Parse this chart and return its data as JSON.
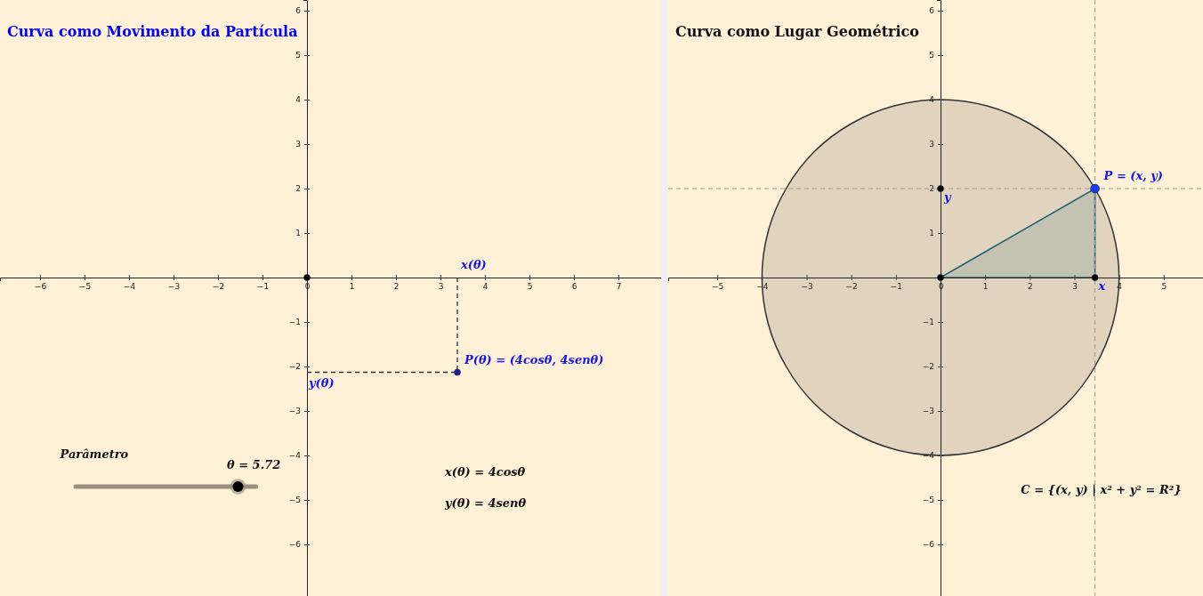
{
  "chart_data": [
    {
      "type": "scatter",
      "title": "Curva como Movimento da Partícula",
      "xlim": [
        -6.9,
        7.96
      ],
      "ylim": [
        -7.16,
        6.24
      ],
      "xticks": [
        -6,
        -5,
        -4,
        -3,
        -2,
        -1,
        0,
        1,
        2,
        3,
        4,
        5,
        6,
        7
      ],
      "yticks": [
        -6,
        -5,
        -4,
        -3,
        -2,
        -1,
        1,
        2,
        3,
        4,
        5,
        6
      ],
      "line_style": "dashed",
      "series": [
        {
          "type": "line",
          "color": "#333333",
          "x": [
            3.38,
            3.38
          ],
          "values": [
            0,
            -2.13
          ]
        },
        {
          "type": "line",
          "color": "#333333",
          "x": [
            0,
            3.38
          ],
          "values": [
            -2.13,
            -2.13
          ]
        },
        {
          "marker": "circle",
          "color": "#1a1aaa",
          "x": [
            3.38
          ],
          "values": [
            -2.13
          ]
        },
        {
          "marker": "circle",
          "color": "#000000",
          "x": [
            0
          ],
          "values": [
            0
          ]
        }
      ],
      "annotations": [
        {
          "text": "x(θ)",
          "x": 3.38,
          "y": 0
        },
        {
          "text": "P(θ) = (4cosθ, 4senθ)",
          "x": 3.38,
          "y": -2.13
        },
        {
          "text": "y(θ)",
          "x": 0,
          "y": -2.13
        },
        "x(θ) = 4cosθ",
        "y(θ) = 4senθ",
        "Parâmetro",
        "θ = 5.72"
      ]
    },
    {
      "type": "scatter",
      "title": "Curva como Lugar Geométrico",
      "xlim": [
        -6.1,
        5.88
      ],
      "ylim": [
        -7.16,
        6.24
      ],
      "xticks": [
        -5,
        -4,
        -3,
        -2,
        -1,
        0,
        1,
        2,
        3,
        4,
        5
      ],
      "yticks": [
        -6,
        -5,
        -4,
        -3,
        -2,
        -1,
        1,
        2,
        3,
        4,
        5,
        6
      ],
      "series": [
        {
          "type": "area",
          "color": "#333333",
          "x": [
            4,
            3.86,
            3.46,
            2.83,
            2,
            1.04,
            0,
            -1.04,
            -2,
            -2.83,
            -3.46,
            -3.86,
            -4,
            -3.86,
            -3.46,
            -2.83,
            -2,
            -1.04,
            0,
            1.04,
            2,
            2.83,
            3.46,
            3.86
          ],
          "values": [
            0,
            1.04,
            2,
            2.83,
            3.46,
            3.86,
            4,
            3.86,
            3.46,
            2.83,
            2,
            1.04,
            0,
            -1.04,
            -2,
            -2.83,
            -3.46,
            -3.86,
            -4,
            -3.86,
            -3.46,
            -2.83,
            -2,
            -1.04
          ]
        },
        {
          "type": "area",
          "color": "#1f5f6f",
          "x": [
            0,
            3.46,
            3.46
          ],
          "values": [
            0,
            2,
            0
          ]
        },
        {
          "marker": "circle",
          "color": "#000000",
          "x": [
            0,
            0,
            3.46
          ],
          "values": [
            0,
            2,
            0
          ]
        },
        {
          "marker": "circle",
          "color": "#1a3aee",
          "x": [
            3.46
          ],
          "values": [
            2
          ]
        }
      ],
      "ref_lines": [
        {
          "axis": "x",
          "value": 3.46,
          "color": "#a09a80",
          "line_style": "dashed"
        },
        {
          "axis": "y",
          "value": 2,
          "color": "#a09a80",
          "line_style": "dashed"
        }
      ],
      "annotations": [
        {
          "text": "P = (x, y)",
          "x": 3.46,
          "y": 2
        },
        {
          "text": "y",
          "x": 0,
          "y": 2
        },
        {
          "text": "x",
          "x": 3.46,
          "y": 0
        },
        "C = {(x, y) | x² + y² = R²}"
      ]
    }
  ]
}
